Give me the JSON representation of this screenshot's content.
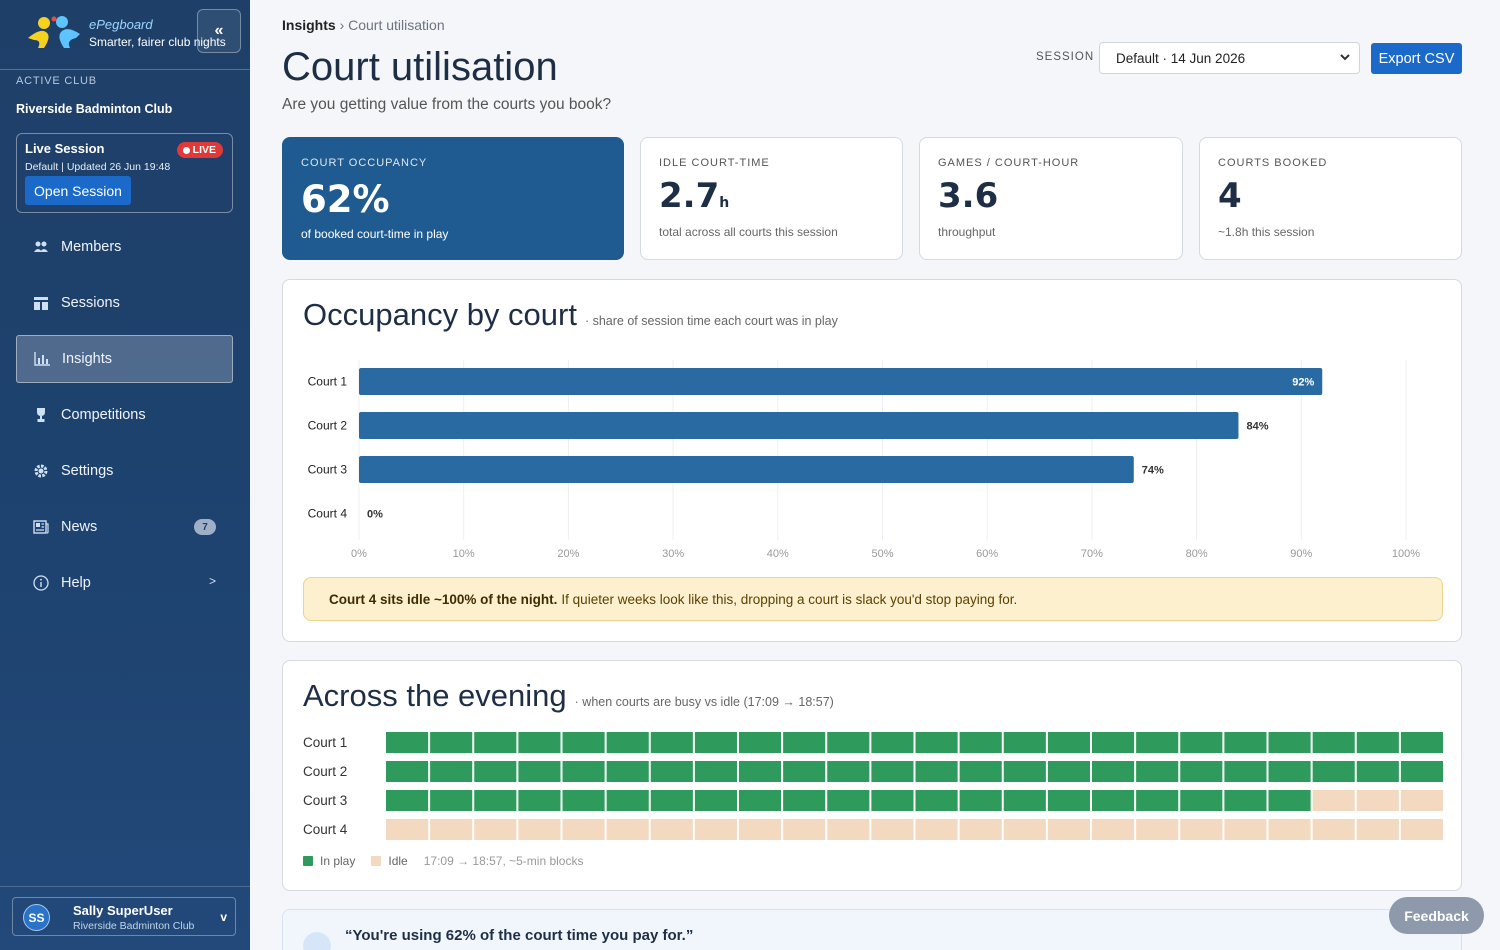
{
  "brand": {
    "name": "ePegboard",
    "tagline": "Smarter, fairer club nights"
  },
  "sidebar": {
    "collapse_label": "«",
    "active_club_label": "ACTIVE CLUB",
    "club_name": "Riverside Badminton Club",
    "live": {
      "title": "Live Session",
      "badge": "LIVE",
      "subtitle": "Default | Updated 26 Jun 19:48",
      "open_label": "Open Session"
    },
    "items": [
      {
        "label": "Members",
        "icon": "members-icon"
      },
      {
        "label": "Sessions",
        "icon": "sessions-icon"
      },
      {
        "label": "Insights",
        "icon": "insights-icon",
        "active": true
      },
      {
        "label": "Competitions",
        "icon": "trophy-icon"
      },
      {
        "label": "Settings",
        "icon": "gear-icon"
      },
      {
        "label": "News",
        "icon": "news-icon",
        "badge": "7"
      },
      {
        "label": "Help",
        "icon": "help-icon",
        "chevron": ">"
      }
    ],
    "user": {
      "initials": "SS",
      "name": "Sally SuperUser",
      "club": "Riverside Badminton Club",
      "chevron": "v"
    }
  },
  "header": {
    "breadcrumb_root": "Insights",
    "breadcrumb_sep": "›",
    "breadcrumb_current": "Court utilisation",
    "title": "Court utilisation",
    "subtitle": "Are you getting value from the courts you book?",
    "session_label": "SESSION",
    "session_value": "Default · 14 Jun 2026",
    "export_label": "Export CSV"
  },
  "kpis": [
    {
      "label": "COURT OCCUPANCY",
      "value": "62%",
      "unit": "",
      "note": "of booked court-time in play"
    },
    {
      "label": "IDLE COURT-TIME",
      "value": "2.7",
      "unit": "h",
      "note": "total across all courts this session"
    },
    {
      "label": "GAMES / COURT-HOUR",
      "value": "3.6",
      "unit": "",
      "note": "throughput"
    },
    {
      "label": "COURTS BOOKED",
      "value": "4",
      "unit": "",
      "note": "~1.8h this session"
    }
  ],
  "occupancy": {
    "title": "Occupancy by court",
    "subtitle": "· share of session time each court was in play",
    "callout_bold": "Court 4 sits idle ~100% of the night.",
    "callout_text": "If quieter weeks look like this, dropping a court is slack you'd stop paying for."
  },
  "chart_data": {
    "type": "bar",
    "orientation": "horizontal",
    "categories": [
      "Court 1",
      "Court 2",
      "Court 3",
      "Court 4"
    ],
    "values": [
      92,
      84,
      74,
      0
    ],
    "value_labels": [
      "92%",
      "84%",
      "74%",
      "0%"
    ],
    "xlim": [
      0,
      100
    ],
    "x_ticks": [
      "0%",
      "10%",
      "20%",
      "30%",
      "40%",
      "50%",
      "60%",
      "70%",
      "80%",
      "90%",
      "100%"
    ],
    "grid": true,
    "bar_color": "#2a6aa3"
  },
  "evening": {
    "title": "Across the evening",
    "subtitle": "· when courts are busy vs idle (17:09 → 18:57)",
    "courts": [
      {
        "label": "Court 1",
        "in_play_blocks": 24
      },
      {
        "label": "Court 2",
        "in_play_blocks": 24
      },
      {
        "label": "Court 3",
        "in_play_blocks": 21
      },
      {
        "label": "Court 4",
        "in_play_blocks": 0
      }
    ],
    "blocks_per_row": 24,
    "legend_in_play": "In play",
    "legend_idle": "Idle",
    "legend_note": "17:09 → 18:57, ~5-min blocks",
    "color_in_play": "#2e9a5c",
    "color_idle": "#f2d9bf"
  },
  "quote": {
    "text": "“You're using 62% of the court time you pay for.”"
  },
  "feedback_label": "Feedback"
}
